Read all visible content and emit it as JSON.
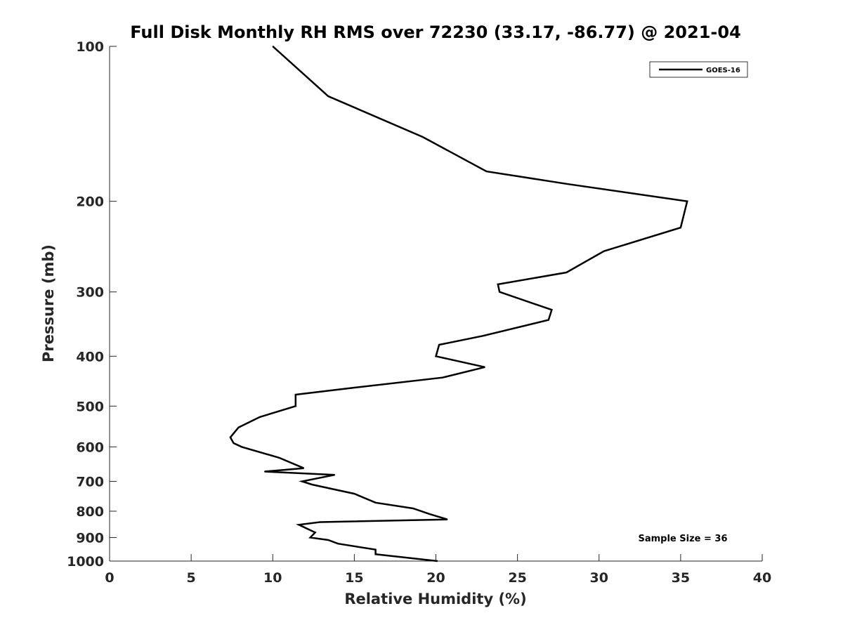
{
  "chart_data": {
    "type": "line",
    "title": "Full Disk Monthly RH RMS over 72230 (33.17, -86.77) @ 2021-04",
    "xlabel": "Relative Humidity (%)",
    "ylabel": "Pressure (mb)",
    "xlim": [
      0,
      40
    ],
    "ylim": [
      100,
      1000
    ],
    "yscale": "log",
    "y_reversed": true,
    "grid": false,
    "legend_position": "top-right",
    "x_ticks": [
      "0",
      "5",
      "10",
      "15",
      "20",
      "25",
      "30",
      "35",
      "40"
    ],
    "y_ticks": [
      "100",
      "200",
      "300",
      "400",
      "500",
      "600",
      "700",
      "800",
      "900",
      "1000"
    ],
    "series": [
      {
        "name": "GOES-16",
        "color": "#000000",
        "x": [
          10.0,
          13.4,
          19.2,
          23.1,
          28.0,
          35.4,
          35.0,
          30.3,
          28.0,
          23.8,
          23.9,
          27.1,
          26.9,
          22.9,
          20.2,
          20.0,
          23.0,
          20.4,
          15.1,
          11.4,
          11.4,
          9.2,
          7.9,
          7.4,
          7.6,
          8.1,
          10.4,
          11.9,
          9.5,
          13.8,
          11.8,
          12.4,
          15.0,
          16.3,
          18.6,
          19.6,
          20.7,
          12.9,
          11.6,
          12.6,
          12.3,
          13.4,
          14.0,
          16.3,
          16.3,
          20.1
        ],
        "y": [
          100,
          125,
          150,
          175,
          185,
          200,
          225,
          250,
          275,
          290,
          300,
          325,
          340,
          365,
          380,
          400,
          420,
          440,
          460,
          475,
          500,
          525,
          550,
          575,
          590,
          600,
          630,
          660,
          670,
          680,
          700,
          710,
          740,
          770,
          790,
          810,
          830,
          840,
          850,
          880,
          900,
          910,
          925,
          950,
          970,
          1000
        ]
      }
    ],
    "annotation": "Sample Size = 36"
  }
}
